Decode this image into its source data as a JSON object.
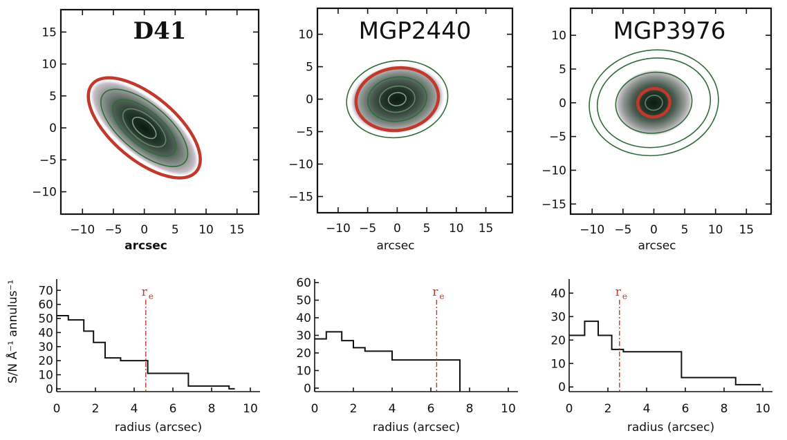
{
  "chart_data": [
    {
      "type": "image",
      "title": "D41",
      "xlabel": "arcsec",
      "xticks": [
        "-10",
        "-5",
        "0",
        "5",
        "10",
        "15"
      ],
      "yticks": [
        "15",
        "10",
        "5",
        "0",
        "-5",
        "-10"
      ],
      "xlim": [
        -13.5,
        18.5
      ],
      "ylim": [
        -13.5,
        18.5
      ],
      "galaxy": {
        "a": 9.5,
        "b": 3.8,
        "angle_deg": -40
      },
      "ellipses": [
        {
          "a": 11.0,
          "b": 5.0,
          "color": "#c0392b"
        },
        {
          "a": 8.6,
          "b": 3.7,
          "color": "#2f6b3a"
        },
        {
          "a": 6.3,
          "b": 2.7,
          "color": "#2f6b3a"
        },
        {
          "a": 4.2,
          "b": 1.9,
          "color": "#6b7f6b"
        },
        {
          "a": 2.3,
          "b": 1.1,
          "color": "#8a9a8a"
        }
      ]
    },
    {
      "type": "image",
      "title": "MGP2440",
      "xlabel": "arcsec",
      "xticks": [
        "-10",
        "-5",
        "0",
        "5",
        "10",
        "15"
      ],
      "yticks": [
        "10",
        "5",
        "0",
        "-5",
        "-10",
        "-15"
      ],
      "xlim": [
        -13.5,
        19.5
      ],
      "ylim": [
        -17.5,
        14.0
      ],
      "galaxy": {
        "a": 7.0,
        "b": 4.6,
        "angle_deg": 8
      },
      "ellipses": [
        {
          "a": 8.6,
          "b": 5.9,
          "color": "#2f6b3a"
        },
        {
          "a": 7.0,
          "b": 4.8,
          "color": "#c0392b"
        },
        {
          "a": 5.0,
          "b": 3.4,
          "color": "#2f6b3a"
        },
        {
          "a": 3.0,
          "b": 2.0,
          "color": "#6b7f6b"
        },
        {
          "a": 1.5,
          "b": 1.0,
          "color": "#8a9a8a"
        }
      ]
    },
    {
      "type": "image",
      "title": "MGP3976",
      "xlabel": "arcsec",
      "xticks": [
        "-10",
        "-5",
        "0",
        "5",
        "10",
        "15"
      ],
      "yticks": [
        "10",
        "5",
        "0",
        "-5",
        "-10",
        "-15"
      ],
      "xlim": [
        -13.5,
        19.0
      ],
      "ylim": [
        -16.5,
        14.0
      ],
      "galaxy": {
        "a": 5.5,
        "b": 4.3,
        "angle_deg": 8
      },
      "ellipses": [
        {
          "a": 10.5,
          "b": 7.8,
          "color": "#2f6b3a"
        },
        {
          "a": 9.2,
          "b": 6.6,
          "color": "#2f6b3a"
        },
        {
          "a": 6.2,
          "b": 4.5,
          "color": "#2f6b3a"
        },
        {
          "a": 2.6,
          "b": 2.1,
          "color": "#c0392b"
        },
        {
          "a": 1.4,
          "b": 1.1,
          "color": "#6b7f6b"
        }
      ]
    },
    {
      "type": "step",
      "xlabel": "radius (arcsec)",
      "ylabel": "S/N Å⁻¹ annulus⁻¹",
      "xticks": [
        "0",
        "2",
        "4",
        "6",
        "8",
        "10"
      ],
      "yticks": [
        "0",
        "10",
        "20",
        "30",
        "40",
        "50",
        "60",
        "70"
      ],
      "xlim": [
        0,
        10.5
      ],
      "ylim": [
        -2,
        78
      ],
      "edges": [
        0,
        0.6,
        1.4,
        1.9,
        2.5,
        3.3,
        4.7,
        6.8,
        8.9,
        9.2
      ],
      "values": [
        52,
        49,
        41,
        33,
        22,
        20,
        11,
        2,
        0
      ],
      "re": 4.6,
      "re_label": "r",
      "re_sub": "e"
    },
    {
      "type": "step",
      "xlabel": "radius (arcsec)",
      "xticks": [
        "0",
        "2",
        "4",
        "6",
        "8",
        "10"
      ],
      "yticks": [
        "0",
        "10",
        "20",
        "30",
        "40",
        "50",
        "60"
      ],
      "xlim": [
        0,
        10.5
      ],
      "ylim": [
        -2,
        62
      ],
      "edges": [
        0,
        0.6,
        1.4,
        2.0,
        2.6,
        4.0,
        7.5
      ],
      "values": [
        28,
        32,
        27,
        23,
        21,
        16
      ],
      "drop_to": -2,
      "re": 6.3,
      "re_label": "r",
      "re_sub": "e"
    },
    {
      "type": "step",
      "xlabel": "radius (arcsec)",
      "xticks": [
        "0",
        "2",
        "4",
        "6",
        "8",
        "10"
      ],
      "yticks": [
        "0",
        "10",
        "20",
        "30",
        "40"
      ],
      "xlim": [
        0,
        10.5
      ],
      "ylim": [
        -2,
        46
      ],
      "edges": [
        0,
        0.8,
        1.5,
        2.2,
        2.8,
        5.8,
        8.6,
        9.9
      ],
      "values": [
        22,
        28,
        22,
        16,
        15,
        4,
        1
      ],
      "re": 2.6,
      "re_label": "r",
      "re_sub": "e"
    }
  ]
}
